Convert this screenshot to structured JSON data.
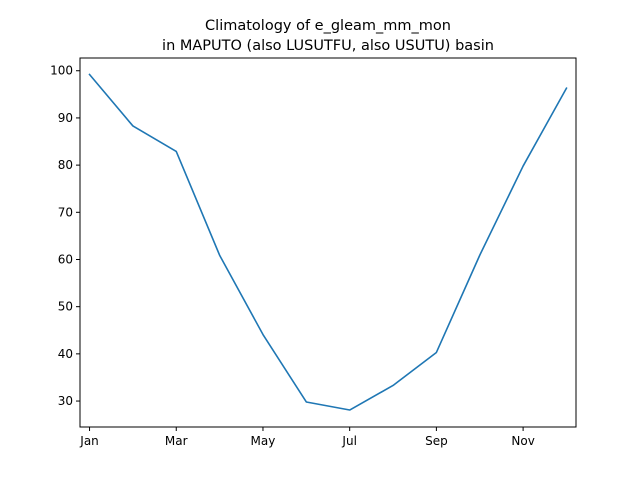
{
  "chart_data": {
    "type": "line",
    "title_lines": [
      "Climatology of e_gleam_mm_mon",
      "in MAPUTO (also LUSUTFU, also USUTU) basin"
    ],
    "xlabel": "",
    "ylabel": "",
    "x": [
      1,
      2,
      3,
      4,
      5,
      6,
      7,
      8,
      9,
      10,
      11,
      12
    ],
    "xlim": [
      0.78,
      12.22
    ],
    "ylim": [
      24.5,
      102.7
    ],
    "x_ticks": [
      {
        "value": 1,
        "label": "Jan"
      },
      {
        "value": 3,
        "label": "Mar"
      },
      {
        "value": 5,
        "label": "May"
      },
      {
        "value": 7,
        "label": "Jul"
      },
      {
        "value": 9,
        "label": "Sep"
      },
      {
        "value": 11,
        "label": "Nov"
      }
    ],
    "y_ticks": [
      {
        "value": 30,
        "label": "30"
      },
      {
        "value": 40,
        "label": "40"
      },
      {
        "value": 50,
        "label": "50"
      },
      {
        "value": 60,
        "label": "60"
      },
      {
        "value": 70,
        "label": "70"
      },
      {
        "value": 80,
        "label": "80"
      },
      {
        "value": 90,
        "label": "90"
      },
      {
        "value": 100,
        "label": "100"
      }
    ],
    "grid": false,
    "series": [
      {
        "color": "#1f77b4",
        "values": [
          99.2,
          88.3,
          82.9,
          60.9,
          44.1,
          29.8,
          28.1,
          33.3,
          40.3,
          60.9,
          79.8,
          96.3
        ]
      }
    ]
  }
}
